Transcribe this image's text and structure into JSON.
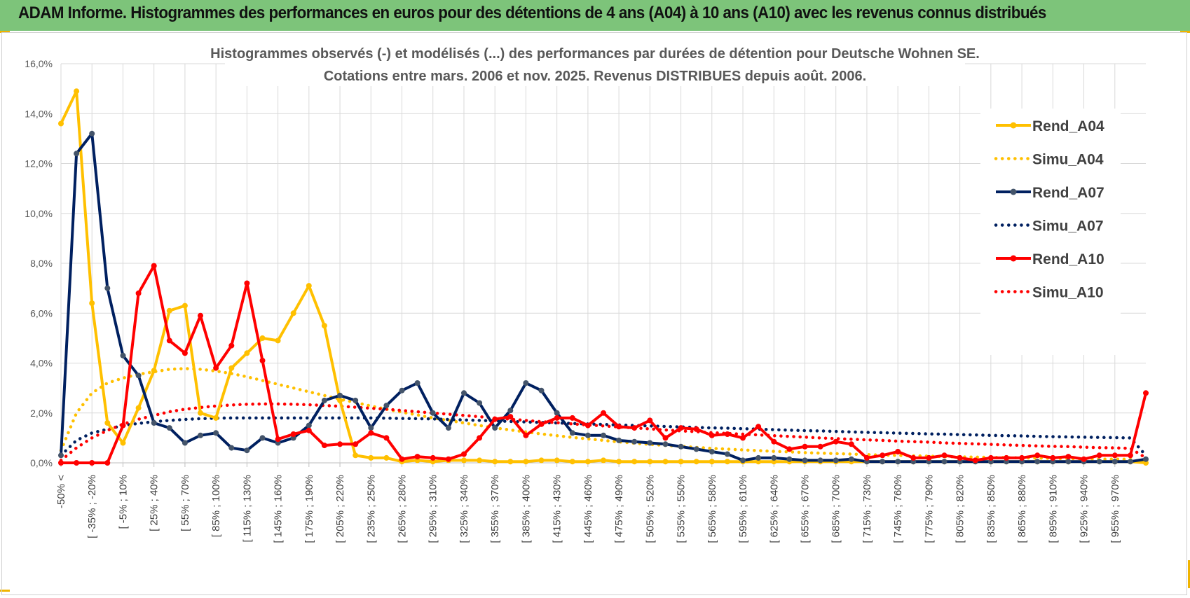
{
  "header": {
    "title": "ADAM Informe. Histogrammes des performances en euros pour des détentions de 4 ans (A04) à 10 ans (A10) avec les revenus connus distribués"
  },
  "colors": {
    "banner": "#7dc47a",
    "A04": "#FFC000",
    "A07": "#002060",
    "A10": "#FF0000",
    "marker07": "#44546A",
    "grid": "#D9D9D9"
  },
  "chart_data": {
    "type": "line",
    "title_line1": "Histogrammes observés (-) et modélisés (...) des performances par durées de détention pour Deutsche Wohnen SE.",
    "title_line2": "Cotations entre mars. 2006 et nov. 2025. Revenus DISTRIBUES depuis août. 2006.",
    "ylim": [
      0,
      16
    ],
    "y_ticks": [
      "0,0%",
      "2,0%",
      "4,0%",
      "6,0%",
      "8,0%",
      "10,0%",
      "12,0%",
      "14,0%",
      "16,0%"
    ],
    "x_tick_labels": [
      "-50% <",
      "[ -35% ; -20%",
      "[ -5% ; 10%",
      "[ 25% ; 40%",
      "[ 55% ; 70%",
      "[ 85% ; 100%",
      "[ 115% ; 130%",
      "[ 145% ; 160%",
      "[ 175% ; 190%",
      "[ 205% ; 220%",
      "[ 235% ; 250%",
      "[ 265% ; 280%",
      "[ 295% ; 310%",
      "[ 325% ; 340%",
      "[ 355% ; 370%",
      "[ 385% ; 400%",
      "[ 415% ; 430%",
      "[ 445% ; 460%",
      "[ 475% ; 490%",
      "[ 505% ; 520%",
      "[ 535% ; 550%",
      "[ 565% ; 580%",
      "[ 595% ; 610%",
      "[ 625% ; 640%",
      "[ 655% ; 670%",
      "[ 685% ; 700%",
      "[ 715% ; 730%",
      "[ 745% ; 760%",
      "[ 775% ; 790%",
      "[ 805% ; 820%",
      "[ 835% ; 850%",
      "[ 865% ; 880%",
      "[ 895% ; 910%",
      "[ 925% ; 940%",
      "[ 955% ; 970%"
    ],
    "series": [
      {
        "name": "Rend_A04",
        "style": "solid",
        "values": [
          13.6,
          14.9,
          6.4,
          1.6,
          0.8,
          2.2,
          3.7,
          6.1,
          6.3,
          2.0,
          1.8,
          3.8,
          4.4,
          5.0,
          4.9,
          6.0,
          7.1,
          5.5,
          2.5,
          0.3,
          0.2,
          0.2,
          0.05,
          0.1,
          0.05,
          0.1,
          0.1,
          0.1,
          0.05,
          0.05,
          0.05,
          0.1,
          0.1,
          0.05,
          0.05,
          0.1,
          0.05,
          0.05,
          0.05,
          0.05,
          0.05,
          0.05,
          0.05,
          0.05,
          0.05,
          0.05,
          0.05,
          0.05,
          0.05,
          0.05,
          0.05,
          0.05,
          0.05,
          0.05,
          0.05,
          0.05,
          0.05,
          0.05,
          0.05,
          0.05,
          0.05,
          0.05,
          0.05,
          0.05,
          0.05,
          0.05,
          0.05,
          0.05,
          0.05,
          0.05,
          0.0
        ]
      },
      {
        "name": "Simu_A04",
        "style": "dotted",
        "values": [
          0.5,
          2.0,
          2.8,
          3.2,
          3.4,
          3.55,
          3.65,
          3.75,
          3.78,
          3.75,
          3.68,
          3.58,
          3.45,
          3.3,
          3.15,
          3.0,
          2.85,
          2.7,
          2.55,
          2.42,
          2.28,
          2.15,
          2.03,
          1.92,
          1.8,
          1.7,
          1.6,
          1.5,
          1.4,
          1.32,
          1.24,
          1.16,
          1.09,
          1.02,
          0.96,
          0.9,
          0.84,
          0.79,
          0.74,
          0.7,
          0.66,
          0.62,
          0.58,
          0.55,
          0.52,
          0.49,
          0.46,
          0.44,
          0.41,
          0.39,
          0.37,
          0.35,
          0.33,
          0.31,
          0.3,
          0.28,
          0.27,
          0.25,
          0.24,
          0.23,
          0.22,
          0.21,
          0.2,
          0.19,
          0.18,
          0.17,
          0.16,
          0.15,
          0.15,
          0.14,
          0.0
        ]
      },
      {
        "name": "Rend_A07",
        "style": "solid",
        "values": [
          0.3,
          12.4,
          13.2,
          7.0,
          4.3,
          3.5,
          1.6,
          1.4,
          0.8,
          1.1,
          1.2,
          0.6,
          0.5,
          1.0,
          0.8,
          1.0,
          1.5,
          2.5,
          2.7,
          2.5,
          1.4,
          2.3,
          2.9,
          3.2,
          2.0,
          1.4,
          2.8,
          2.4,
          1.4,
          2.1,
          3.2,
          2.9,
          2.0,
          1.2,
          1.1,
          1.1,
          0.9,
          0.85,
          0.8,
          0.75,
          0.65,
          0.55,
          0.45,
          0.35,
          0.1,
          0.2,
          0.2,
          0.15,
          0.1,
          0.1,
          0.1,
          0.15,
          0.05,
          0.05,
          0.05,
          0.05,
          0.05,
          0.05,
          0.05,
          0.05,
          0.05,
          0.05,
          0.05,
          0.05,
          0.05,
          0.05,
          0.05,
          0.05,
          0.05,
          0.05,
          0.15
        ]
      },
      {
        "name": "Simu_A07",
        "style": "dotted",
        "values": [
          0.3,
          0.9,
          1.2,
          1.35,
          1.5,
          1.58,
          1.65,
          1.7,
          1.74,
          1.77,
          1.79,
          1.8,
          1.8,
          1.8,
          1.8,
          1.8,
          1.8,
          1.8,
          1.8,
          1.8,
          1.8,
          1.79,
          1.78,
          1.77,
          1.76,
          1.74,
          1.72,
          1.7,
          1.68,
          1.66,
          1.64,
          1.62,
          1.6,
          1.58,
          1.56,
          1.54,
          1.52,
          1.5,
          1.48,
          1.46,
          1.44,
          1.42,
          1.4,
          1.39,
          1.37,
          1.35,
          1.33,
          1.31,
          1.29,
          1.28,
          1.26,
          1.24,
          1.22,
          1.21,
          1.19,
          1.18,
          1.16,
          1.15,
          1.13,
          1.12,
          1.1,
          1.09,
          1.08,
          1.06,
          1.05,
          1.04,
          1.03,
          1.02,
          1.01,
          1.0,
          0.3
        ]
      },
      {
        "name": "Rend_A10",
        "style": "solid",
        "values": [
          0.0,
          0.0,
          0.0,
          0.0,
          1.5,
          6.8,
          7.9,
          4.9,
          4.4,
          5.9,
          3.8,
          4.7,
          7.2,
          4.1,
          0.95,
          1.15,
          1.3,
          0.7,
          0.75,
          0.75,
          1.2,
          1.0,
          0.15,
          0.25,
          0.2,
          0.15,
          0.35,
          1.0,
          1.75,
          1.85,
          1.1,
          1.55,
          1.8,
          1.8,
          1.5,
          2.0,
          1.45,
          1.4,
          1.7,
          1.0,
          1.4,
          1.35,
          1.1,
          1.15,
          1.0,
          1.45,
          0.85,
          0.55,
          0.65,
          0.65,
          0.85,
          0.75,
          0.2,
          0.3,
          0.45,
          0.2,
          0.2,
          0.3,
          0.2,
          0.1,
          0.2,
          0.2,
          0.2,
          0.3,
          0.2,
          0.25,
          0.15,
          0.3,
          0.3,
          0.3,
          2.8
        ]
      },
      {
        "name": "Simu_A10",
        "style": "dotted",
        "values": [
          0.1,
          0.6,
          1.0,
          1.3,
          1.55,
          1.75,
          1.9,
          2.05,
          2.15,
          2.22,
          2.28,
          2.32,
          2.35,
          2.36,
          2.36,
          2.35,
          2.33,
          2.3,
          2.27,
          2.23,
          2.19,
          2.15,
          2.1,
          2.05,
          2.0,
          1.95,
          1.9,
          1.85,
          1.8,
          1.75,
          1.7,
          1.65,
          1.61,
          1.56,
          1.52,
          1.48,
          1.44,
          1.4,
          1.36,
          1.32,
          1.28,
          1.25,
          1.21,
          1.18,
          1.15,
          1.12,
          1.09,
          1.06,
          1.03,
          1.0,
          0.97,
          0.95,
          0.92,
          0.9,
          0.87,
          0.85,
          0.83,
          0.8,
          0.78,
          0.76,
          0.74,
          0.72,
          0.7,
          0.68,
          0.66,
          0.65,
          0.63,
          0.61,
          0.6,
          0.58,
          0.2
        ]
      }
    ],
    "legend": [
      "Rend_A04",
      "Simu_A04",
      "Rend_A07",
      "Simu_A07",
      "Rend_A10",
      "Simu_A10"
    ],
    "legend_position": "right"
  }
}
